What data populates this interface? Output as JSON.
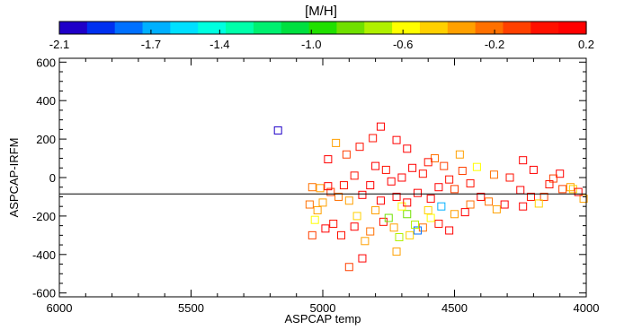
{
  "chart_data": {
    "type": "scatter",
    "xlabel": "ASPCAP temp",
    "ylabel": "ASPCAP-IRFM",
    "xlim": [
      6000,
      4000
    ],
    "ylim": [
      -620,
      620
    ],
    "x_reversed": true,
    "xticks": [
      6000,
      5500,
      5000,
      4500,
      4000
    ],
    "yticks": [
      600,
      400,
      200,
      0,
      -200,
      -400,
      -600
    ],
    "xtick_labels": [
      "6000",
      "5500",
      "5000",
      "4500",
      "4000"
    ],
    "ytick_labels": [
      "600",
      "400",
      "200",
      "0",
      "-200",
      "-400",
      "-600"
    ],
    "reference_line_y": -85,
    "marker": "open-square",
    "grid": false,
    "colorbar": {
      "label": "[M/H]",
      "range": [
        -2.1,
        0.2
      ],
      "tick_values": [
        -2.1,
        -1.7,
        -1.4,
        -1.0,
        -0.6,
        -0.2,
        0.2
      ],
      "tick_labels": [
        "-2.1",
        "-1.7",
        "-1.4",
        "-1.0",
        "-0.6",
        "-0.2",
        "0.2"
      ],
      "colors": [
        "#1f00c8",
        "#0030f0",
        "#0070ff",
        "#00b0ff",
        "#00e0ff",
        "#00ffe0",
        "#00ffaa",
        "#00f070",
        "#00e040",
        "#20e000",
        "#70e000",
        "#b0f000",
        "#ffff00",
        "#ffd000",
        "#ffa000",
        "#ff7000",
        "#ff4000",
        "#ff1000",
        "#ff0000"
      ]
    },
    "points": [
      {
        "x": 5170,
        "y": 245,
        "m": -2.0
      },
      {
        "x": 4780,
        "y": 265,
        "m": 0.1
      },
      {
        "x": 4810,
        "y": 205,
        "m": 0.05
      },
      {
        "x": 4720,
        "y": 195,
        "m": 0.15
      },
      {
        "x": 4950,
        "y": 180,
        "m": -0.3
      },
      {
        "x": 4860,
        "y": 160,
        "m": 0.0
      },
      {
        "x": 4680,
        "y": 150,
        "m": 0.1
      },
      {
        "x": 4980,
        "y": 95,
        "m": 0.1
      },
      {
        "x": 4910,
        "y": 120,
        "m": -0.1
      },
      {
        "x": 4575,
        "y": 100,
        "m": -0.2
      },
      {
        "x": 4470,
        "y": 35,
        "m": -0.1
      },
      {
        "x": 4480,
        "y": 120,
        "m": -0.35
      },
      {
        "x": 4415,
        "y": 55,
        "m": -0.6
      },
      {
        "x": 4240,
        "y": 90,
        "m": 0.1
      },
      {
        "x": 4200,
        "y": 40,
        "m": 0.15
      },
      {
        "x": 4100,
        "y": 20,
        "m": 0.15
      },
      {
        "x": 4125,
        "y": -5,
        "m": -0.05
      },
      {
        "x": 4290,
        "y": 0,
        "m": 0.05
      },
      {
        "x": 4350,
        "y": 15,
        "m": -0.25
      },
      {
        "x": 4060,
        "y": -50,
        "m": -0.3
      },
      {
        "x": 4050,
        "y": -60,
        "m": -0.45
      },
      {
        "x": 4010,
        "y": -110,
        "m": -0.3
      },
      {
        "x": 4030,
        "y": -75,
        "m": 0.1
      },
      {
        "x": 4090,
        "y": -60,
        "m": -0.1
      },
      {
        "x": 4140,
        "y": -35,
        "m": 0.0
      },
      {
        "x": 4160,
        "y": -100,
        "m": -0.15
      },
      {
        "x": 4210,
        "y": -100,
        "m": 0.05
      },
      {
        "x": 4250,
        "y": -65,
        "m": 0.1
      },
      {
        "x": 4310,
        "y": -140,
        "m": 0.15
      },
      {
        "x": 4340,
        "y": -165,
        "m": -0.3
      },
      {
        "x": 4370,
        "y": -125,
        "m": -0.2
      },
      {
        "x": 4180,
        "y": -135,
        "m": -0.5
      },
      {
        "x": 4240,
        "y": -150,
        "m": 0.15
      },
      {
        "x": 4400,
        "y": -100,
        "m": 0.1
      },
      {
        "x": 4440,
        "y": -30,
        "m": 0.05
      },
      {
        "x": 4500,
        "y": -190,
        "m": -0.3
      },
      {
        "x": 4520,
        "y": -275,
        "m": 0.1
      },
      {
        "x": 4560,
        "y": -240,
        "m": 0.05
      },
      {
        "x": 4590,
        "y": -210,
        "m": -0.6
      },
      {
        "x": 4620,
        "y": -260,
        "m": -0.2
      },
      {
        "x": 4640,
        "y": -275,
        "m": -1.8
      },
      {
        "x": 4650,
        "y": -245,
        "m": -0.75
      },
      {
        "x": 4710,
        "y": -310,
        "m": -0.7
      },
      {
        "x": 4730,
        "y": -260,
        "m": -0.4
      },
      {
        "x": 4770,
        "y": -230,
        "m": 0.0
      },
      {
        "x": 4820,
        "y": -280,
        "m": -0.2
      },
      {
        "x": 4840,
        "y": -330,
        "m": -0.4
      },
      {
        "x": 4880,
        "y": -255,
        "m": 0.1
      },
      {
        "x": 4930,
        "y": -300,
        "m": 0.0
      },
      {
        "x": 4960,
        "y": -240,
        "m": 0.05
      },
      {
        "x": 4990,
        "y": -265,
        "m": 0.1
      },
      {
        "x": 5040,
        "y": -300,
        "m": -0.15
      },
      {
        "x": 5030,
        "y": -220,
        "m": -0.6
      },
      {
        "x": 5020,
        "y": -170,
        "m": -0.3
      },
      {
        "x": 5050,
        "y": -140,
        "m": -0.25
      },
      {
        "x": 5000,
        "y": -130,
        "m": -0.3
      },
      {
        "x": 5040,
        "y": -50,
        "m": -0.2
      },
      {
        "x": 5010,
        "y": -55,
        "m": -0.3
      },
      {
        "x": 4970,
        "y": -75,
        "m": -0.1
      },
      {
        "x": 4940,
        "y": -100,
        "m": -0.2
      },
      {
        "x": 4900,
        "y": -120,
        "m": -0.35
      },
      {
        "x": 4980,
        "y": -45,
        "m": 0.1
      },
      {
        "x": 4720,
        "y": -385,
        "m": -0.3
      },
      {
        "x": 4850,
        "y": -420,
        "m": 0.1
      },
      {
        "x": 4900,
        "y": -465,
        "m": -0.15
      },
      {
        "x": 4670,
        "y": -300,
        "m": -0.5
      },
      {
        "x": 4440,
        "y": -140,
        "m": -0.2
      },
      {
        "x": 4460,
        "y": -180,
        "m": 0.1
      },
      {
        "x": 4550,
        "y": -150,
        "m": -1.7
      },
      {
        "x": 4600,
        "y": -170,
        "m": -0.5
      },
      {
        "x": 4680,
        "y": -190,
        "m": -0.8
      },
      {
        "x": 4700,
        "y": -150,
        "m": -0.6
      },
      {
        "x": 4750,
        "y": -210,
        "m": -0.85
      },
      {
        "x": 4800,
        "y": -170,
        "m": -0.4
      },
      {
        "x": 4870,
        "y": -200,
        "m": -0.5
      },
      {
        "x": 4660,
        "y": 50,
        "m": 0.1
      },
      {
        "x": 4620,
        "y": 20,
        "m": 0.05
      },
      {
        "x": 4700,
        "y": 0,
        "m": 0.1
      },
      {
        "x": 4740,
        "y": -20,
        "m": 0.15
      },
      {
        "x": 4760,
        "y": 40,
        "m": 0.05
      },
      {
        "x": 4820,
        "y": -40,
        "m": 0.1
      },
      {
        "x": 4880,
        "y": 10,
        "m": 0.0
      },
      {
        "x": 4560,
        "y": -50,
        "m": 0.1
      },
      {
        "x": 4590,
        "y": -110,
        "m": 0.15
      },
      {
        "x": 4640,
        "y": -80,
        "m": 0.1
      },
      {
        "x": 4780,
        "y": -120,
        "m": 0.15
      },
      {
        "x": 4850,
        "y": -90,
        "m": 0.1
      },
      {
        "x": 4920,
        "y": -40,
        "m": 0.05
      },
      {
        "x": 4520,
        "y": -10,
        "m": 0.0
      },
      {
        "x": 4540,
        "y": 60,
        "m": -0.05
      },
      {
        "x": 4500,
        "y": -60,
        "m": -0.1
      },
      {
        "x": 4680,
        "y": -130,
        "m": 0.1
      },
      {
        "x": 4720,
        "y": -100,
        "m": 0.15
      },
      {
        "x": 4800,
        "y": 60,
        "m": 0.1
      },
      {
        "x": 4600,
        "y": 80,
        "m": 0.05
      }
    ]
  }
}
